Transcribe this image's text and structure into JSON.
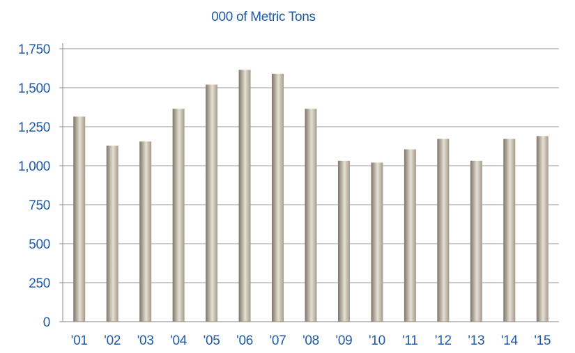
{
  "chart_data": {
    "type": "bar",
    "title": "000 of Metric Tons",
    "xlabel": "",
    "ylabel": "",
    "categories": [
      "'01",
      "'02",
      "'03",
      "'04",
      "'05",
      "'06",
      "'07",
      "'08",
      "'09",
      "'10",
      "'11",
      "'12",
      "'13",
      "'14",
      "'15"
    ],
    "values": [
      1315,
      1128,
      1155,
      1365,
      1520,
      1615,
      1590,
      1365,
      1032,
      1020,
      1105,
      1172,
      1032,
      1172,
      1190
    ],
    "ylim": [
      0,
      1750
    ],
    "yticks": [
      0,
      250,
      500,
      750,
      1000,
      1250,
      1500,
      1750
    ],
    "ytick_labels": [
      "0",
      "250",
      "500",
      "750",
      "1,000",
      "1,250",
      "1,500",
      "1,750"
    ],
    "grid": true,
    "legend": "none"
  },
  "colors": {
    "text": "#1f5aa6",
    "grid": "#9a9a9a",
    "axis": "#8a8a8a",
    "bar_dark": "#7d7567",
    "bar_light": "#e6e0d4"
  }
}
